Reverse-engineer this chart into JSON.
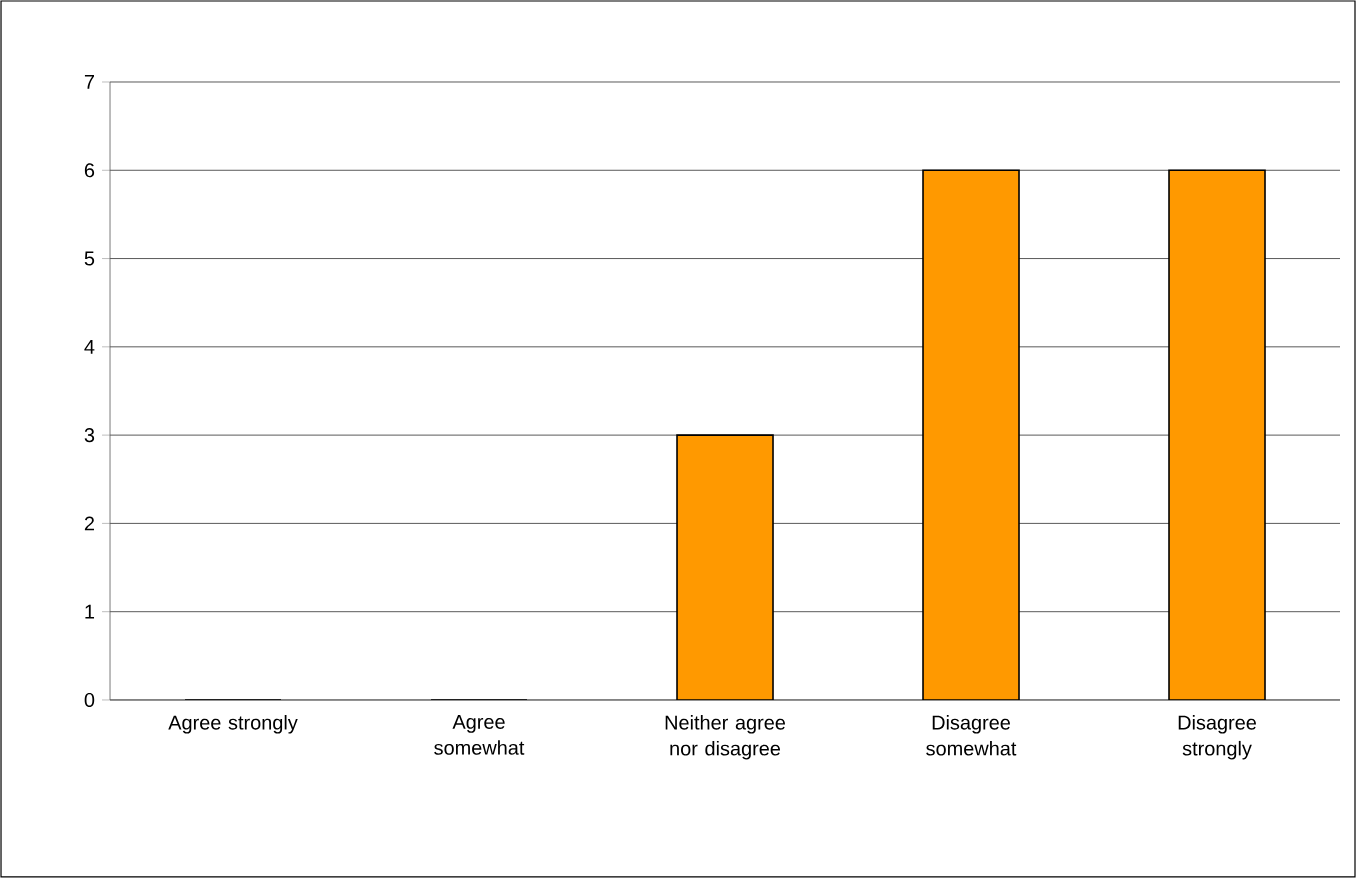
{
  "chart_data": {
    "type": "bar",
    "categories": [
      "Agree strongly",
      "Agree somewhat",
      "Neither agree nor disagree",
      "Disagree somewhat",
      "Disagree strongly"
    ],
    "values": [
      0,
      0,
      3,
      6,
      6
    ],
    "color": "#ff9900",
    "ylim": [
      0,
      7
    ],
    "yticks": [
      0,
      1,
      2,
      3,
      4,
      5,
      6,
      7
    ],
    "grid": "y"
  }
}
